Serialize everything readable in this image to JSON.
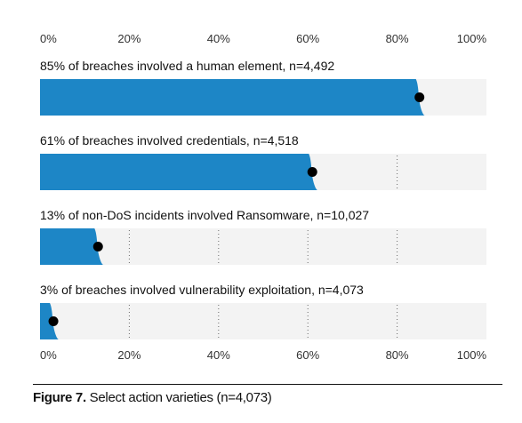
{
  "chart_data": {
    "type": "bar",
    "orientation": "horizontal",
    "xlim": [
      0,
      100
    ],
    "x_ticks": [
      "0%",
      "20%",
      "40%",
      "60%",
      "80%",
      "100%"
    ],
    "tick_values": [
      0,
      20,
      40,
      60,
      80,
      100
    ],
    "grid": true,
    "bars": [
      {
        "label": "85% of breaches involved a human element, n=4,492",
        "value": 85
      },
      {
        "label": "61% of breaches involved credentials, n=4,518",
        "value": 61
      },
      {
        "label": "13% of non-DoS incidents involved Ransomware, n=10,027",
        "value": 13
      },
      {
        "label": "3% of breaches involved vulnerability exploitation, n=4,073",
        "value": 3
      }
    ],
    "colors": {
      "bar": "#1d86c6",
      "track": "#f3f3f3",
      "dot": "#000000"
    }
  },
  "caption": {
    "figure": "Figure 7.",
    "text": " Select action varieties (n=4,073)"
  }
}
